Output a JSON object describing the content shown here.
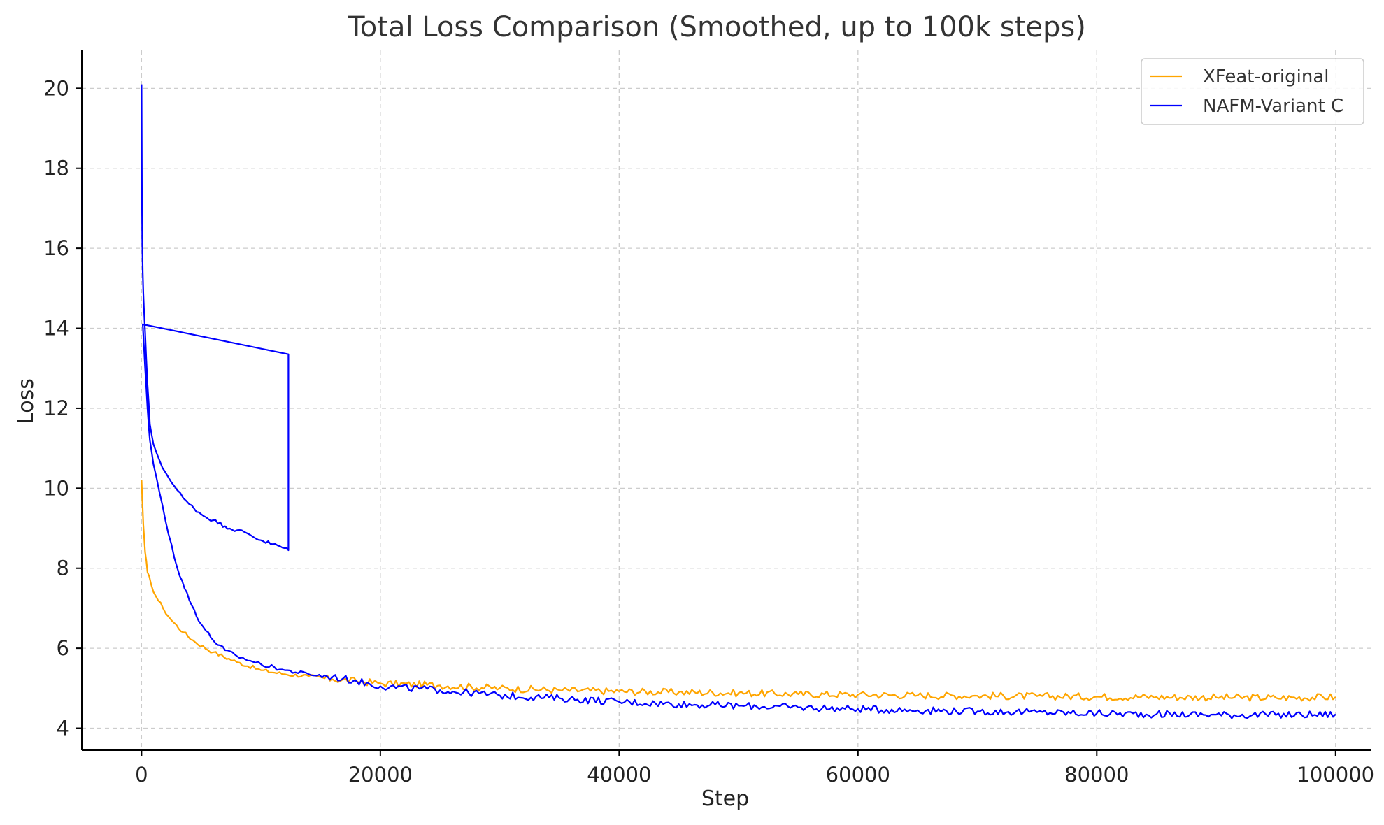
{
  "chart_data": {
    "type": "line",
    "title": "Total Loss Comparison (Smoothed, up to 100k steps)",
    "xlabel": "Step",
    "ylabel": "Loss",
    "xlim": [
      -5000,
      103000
    ],
    "ylim": [
      3.45,
      20.95
    ],
    "xticks": [
      0,
      20000,
      40000,
      60000,
      80000,
      100000
    ],
    "yticks": [
      4,
      6,
      8,
      10,
      12,
      14,
      16,
      18,
      20
    ],
    "grid": true,
    "legend_position": "top-right",
    "series": [
      {
        "name": "XFeat-original",
        "color": "#FFA500",
        "x": [
          0,
          150,
          300,
          500,
          800,
          1200,
          1800,
          2500,
          3500,
          4500,
          6000,
          8000,
          10000,
          12000,
          14000,
          16000,
          18000,
          20000,
          25000,
          30000,
          35000,
          40000,
          45000,
          50000,
          55000,
          60000,
          65000,
          70000,
          75000,
          80000,
          85000,
          90000,
          95000,
          100000
        ],
        "y": [
          10.2,
          9.1,
          8.4,
          7.9,
          7.6,
          7.3,
          7.0,
          6.7,
          6.4,
          6.15,
          5.9,
          5.65,
          5.45,
          5.35,
          5.3,
          5.22,
          5.18,
          5.12,
          5.07,
          5.0,
          4.95,
          4.92,
          4.9,
          4.88,
          4.85,
          4.84,
          4.82,
          4.81,
          4.8,
          4.79,
          4.78,
          4.77,
          4.76,
          4.78
        ]
      },
      {
        "name": "NAFM-Variant C",
        "color": "#0000FF",
        "x": [
          0,
          30,
          60,
          100,
          150,
          200,
          300,
          400,
          500,
          700,
          1000,
          1500,
          2000,
          2500,
          3000,
          3500,
          4000,
          5000,
          6000,
          7000,
          8000,
          9000,
          10000,
          11000,
          12000,
          12300,
          12300,
          12300,
          100,
          300,
          500,
          700,
          1000,
          1500,
          2000,
          2500,
          3000,
          4000,
          5000,
          6000,
          7000,
          8000,
          10000,
          12000,
          14000,
          16000,
          18000,
          20000,
          25000,
          30000,
          35000,
          40000,
          45000,
          50000,
          55000,
          60000,
          65000,
          70000,
          75000,
          80000,
          85000,
          90000,
          95000,
          100000
        ],
        "y": [
          20.1,
          17.5,
          16.2,
          15.4,
          14.9,
          14.5,
          13.9,
          13.2,
          12.6,
          11.6,
          11.1,
          10.7,
          10.4,
          10.15,
          9.95,
          9.75,
          9.6,
          9.35,
          9.2,
          9.05,
          8.95,
          8.85,
          8.7,
          8.6,
          8.5,
          8.45,
          13.35,
          13.35,
          14.1,
          13.0,
          12.0,
          11.2,
          10.6,
          9.9,
          9.2,
          8.6,
          8.0,
          7.2,
          6.6,
          6.2,
          5.95,
          5.8,
          5.6,
          5.45,
          5.35,
          5.28,
          5.18,
          5.05,
          4.95,
          4.82,
          4.75,
          4.66,
          4.6,
          4.56,
          4.52,
          4.48,
          4.45,
          4.42,
          4.4,
          4.37,
          4.35,
          4.34,
          4.33,
          4.35
        ]
      }
    ]
  }
}
